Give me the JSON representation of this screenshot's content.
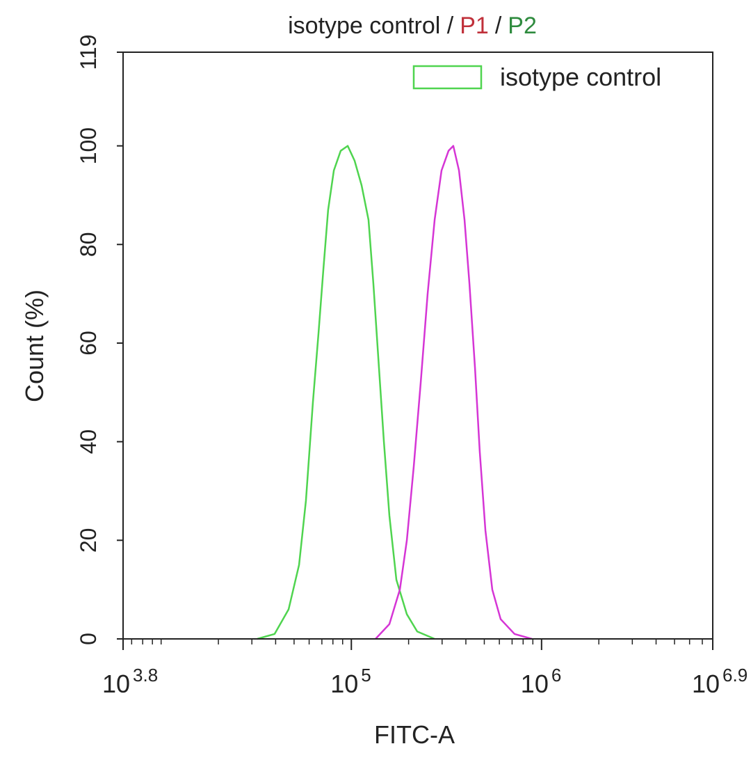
{
  "chart_data": {
    "type": "line",
    "title_parts": [
      {
        "text": "isotype control /",
        "color": "#222222"
      },
      {
        "text": "P1",
        "color": "#c0303a"
      },
      {
        "text": "/",
        "color": "#222222"
      },
      {
        "text": "P2",
        "color": "#2e8b3e"
      }
    ],
    "xlabel": "FITC-A",
    "ylabel": "Count  (%)",
    "xscale": "log",
    "xlim": [
      6309.573,
      7943282
    ],
    "xticks": [
      {
        "value": 6309.573,
        "label": [
          "10",
          "3.8"
        ]
      },
      {
        "value": 100000,
        "label": [
          "10",
          "5"
        ]
      },
      {
        "value": 1000000,
        "label": [
          "10",
          "6"
        ]
      },
      {
        "value": 7943282,
        "label": [
          "10",
          "6.9"
        ]
      }
    ],
    "xminorticks": [
      7000,
      8000,
      9000,
      10000,
      20000,
      30000,
      40000,
      50000,
      60000,
      70000,
      80000,
      90000,
      200000,
      300000,
      400000,
      500000,
      600000,
      700000,
      800000,
      900000,
      2000000,
      3000000,
      4000000,
      5000000,
      6000000,
      7000000
    ],
    "ylim": [
      0,
      119
    ],
    "yticks": [
      0,
      20,
      40,
      60,
      80,
      100,
      119
    ],
    "legend": "upper right",
    "series": [
      {
        "name": "isotype control",
        "color": "#4fd44f",
        "x": [
          32000,
          39500,
          46800,
          53100,
          57700,
          62800,
          67200,
          71300,
          75500,
          80900,
          87900,
          95700,
          104000,
          113200,
          123100,
          130600,
          139700,
          148300,
          158500,
          172500,
          195800,
          222000,
          274100
        ],
        "values": [
          0,
          1,
          6,
          15,
          28,
          48,
          62,
          75,
          87,
          95,
          99,
          100,
          97,
          92,
          85,
          72,
          55,
          40,
          25,
          12,
          5,
          1.5,
          0
        ]
      },
      {
        "color": "#d535d5",
        "x": [
          134000,
          158500,
          179900,
          195800,
          212900,
          231600,
          251800,
          274100,
          297900,
          324300,
          343600,
          368100,
          393600,
          417800,
          446700,
          473200,
          506800,
          550800,
          609500,
          721100,
          891300
        ],
        "values": [
          0,
          3,
          10,
          20,
          35,
          52,
          70,
          85,
          95,
          99,
          100,
          95,
          85,
          72,
          55,
          38,
          22,
          10,
          4,
          1,
          0
        ]
      }
    ]
  }
}
